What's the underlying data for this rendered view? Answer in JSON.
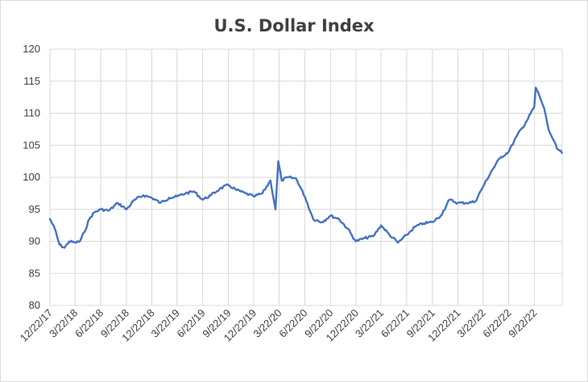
{
  "chart_data": {
    "type": "line",
    "title": "U.S. Dollar Index",
    "xlabel": "",
    "ylabel": "",
    "ylim": [
      80,
      120
    ],
    "yticks": [
      80,
      85,
      90,
      95,
      100,
      105,
      110,
      115,
      120
    ],
    "xticks": [
      "12/22/17",
      "3/22/18",
      "6/22/18",
      "9/22/18",
      "12/22/18",
      "3/22/19",
      "6/22/19",
      "9/22/19",
      "12/22/19",
      "3/22/20",
      "6/22/20",
      "9/22/20",
      "12/22/20",
      "3/22/21",
      "6/22/21",
      "9/22/21",
      "12/22/21",
      "3/22/22",
      "6/22/22",
      "9/22/22"
    ],
    "grid": true,
    "line_color": "#4472c4",
    "series": [
      {
        "x": [
          "12/22/17",
          "1/8/18",
          "1/25/18",
          "2/12/18",
          "3/1/18",
          "3/22/18",
          "4/8/18",
          "4/25/18",
          "5/12/18",
          "5/29/18",
          "6/22/18",
          "7/22/18",
          "8/22/18",
          "9/22/18",
          "10/22/18",
          "11/22/18",
          "12/22/18",
          "1/22/19",
          "2/22/19",
          "3/22/19",
          "4/22/19",
          "5/22/19",
          "6/22/19",
          "7/22/19",
          "8/22/19",
          "9/22/19",
          "10/22/19",
          "11/22/19",
          "12/22/19",
          "1/22/20",
          "2/20/20",
          "3/9/20",
          "3/19/20",
          "3/31/20",
          "4/22/20",
          "5/22/20",
          "6/22/20",
          "7/22/20",
          "8/22/20",
          "9/22/20",
          "10/22/20",
          "11/22/20",
          "12/22/20",
          "1/22/21",
          "2/22/21",
          "3/22/21",
          "4/22/21",
          "5/22/21",
          "6/22/21",
          "7/22/21",
          "8/22/21",
          "9/22/21",
          "10/22/21",
          "11/22/21",
          "12/22/21",
          "1/22/22",
          "2/22/22",
          "3/22/22",
          "4/22/22",
          "5/22/22",
          "6/22/22",
          "7/22/22",
          "8/22/22",
          "9/22/22",
          "9/27/22",
          "10/12/22",
          "10/27/22",
          "11/12/22",
          "11/27/22",
          "12/12/22",
          "12/30/22"
        ],
        "values": [
          93.5,
          92.0,
          89.5,
          89.0,
          90.0,
          89.8,
          90.0,
          91.5,
          93.5,
          94.5,
          95.0,
          94.8,
          96.0,
          95.0,
          96.5,
          97.2,
          96.8,
          96.0,
          96.8,
          97.0,
          97.5,
          97.8,
          96.5,
          97.2,
          98.2,
          98.8,
          98.0,
          97.5,
          97.0,
          97.5,
          99.5,
          95.0,
          102.5,
          99.5,
          100.0,
          99.8,
          97.0,
          93.5,
          93.0,
          94.0,
          93.5,
          92.0,
          90.0,
          90.5,
          90.8,
          92.5,
          91.0,
          89.8,
          91.0,
          92.3,
          92.8,
          93.0,
          94.0,
          96.5,
          96.0,
          96.0,
          96.2,
          98.5,
          101.0,
          103.0,
          104.0,
          106.5,
          108.5,
          111.0,
          114.0,
          112.5,
          110.8,
          107.5,
          106.0,
          104.5,
          103.8
        ]
      }
    ]
  }
}
